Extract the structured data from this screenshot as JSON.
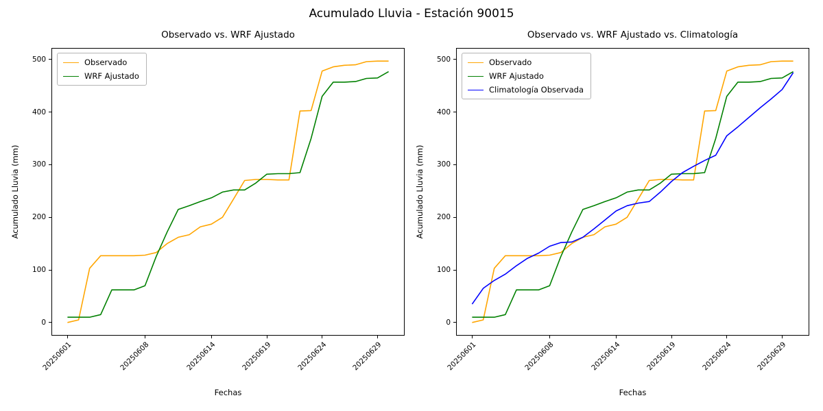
{
  "figure": {
    "suptitle": "Acumulado Lluvia - Estación 90015",
    "background": "#ffffff"
  },
  "chart_data": [
    {
      "type": "line",
      "title": "Observado vs. WRF Ajustado",
      "xlabel": "Fechas",
      "ylabel": "Acumulado Lluvia (mm)",
      "ylim": [
        -25,
        522
      ],
      "y_ticks": [
        0,
        100,
        200,
        300,
        400,
        500
      ],
      "grid": false,
      "legend_position": "upper left",
      "x_tick_rotation": 45,
      "x": [
        "20250601",
        "20250602",
        "20250603",
        "20250604",
        "20250605",
        "20250606",
        "20250607",
        "20250608",
        "20250609",
        "20250610",
        "20250611",
        "20250612",
        "20250613",
        "20250614",
        "20250615",
        "20250616",
        "20250617",
        "20250618",
        "20250619",
        "20250620",
        "20250621",
        "20250622",
        "20250623",
        "20250624",
        "20250625",
        "20250626",
        "20250627",
        "20250628",
        "20250629",
        "20250630"
      ],
      "x_tick_positions": [
        0,
        7,
        13,
        18,
        23,
        28
      ],
      "x_tick_labels": [
        "20250601",
        "20250608",
        "20250614",
        "20250619",
        "20250624",
        "20250629"
      ],
      "series": [
        {
          "name": "Observado",
          "color": "#ffa500",
          "values": [
            0,
            5,
            103,
            127,
            127,
            127,
            127,
            128,
            133,
            150,
            162,
            167,
            182,
            187,
            200,
            235,
            270,
            272,
            272,
            271,
            271,
            402,
            403,
            478,
            486,
            489,
            490,
            496,
            497,
            497
          ]
        },
        {
          "name": "WRF Ajustado",
          "color": "#008000",
          "values": [
            10,
            10,
            10,
            15,
            62,
            62,
            62,
            70,
            125,
            172,
            215,
            222,
            230,
            237,
            248,
            252,
            252,
            265,
            282,
            283,
            283,
            285,
            350,
            430,
            457,
            457,
            458,
            464,
            465,
            477
          ]
        }
      ]
    },
    {
      "type": "line",
      "title": "Observado vs. WRF Ajustado vs. Climatología",
      "xlabel": "Fechas",
      "ylabel": "Acumulado Lluvia (mm)",
      "ylim": [
        -25,
        522
      ],
      "y_ticks": [
        0,
        100,
        200,
        300,
        400,
        500
      ],
      "grid": false,
      "legend_position": "upper left",
      "x_tick_rotation": 45,
      "x": [
        "20250601",
        "20250602",
        "20250603",
        "20250604",
        "20250605",
        "20250606",
        "20250607",
        "20250608",
        "20250609",
        "20250610",
        "20250611",
        "20250612",
        "20250613",
        "20250614",
        "20250615",
        "20250616",
        "20250617",
        "20250618",
        "20250619",
        "20250620",
        "20250621",
        "20250622",
        "20250623",
        "20250624",
        "20250625",
        "20250626",
        "20250627",
        "20250628",
        "20250629",
        "20250630"
      ],
      "x_tick_positions": [
        0,
        7,
        13,
        18,
        23,
        28
      ],
      "x_tick_labels": [
        "20250601",
        "20250608",
        "20250614",
        "20250619",
        "20250624",
        "20250629"
      ],
      "series": [
        {
          "name": "Observado",
          "color": "#ffa500",
          "values": [
            0,
            5,
            103,
            127,
            127,
            127,
            127,
            128,
            133,
            150,
            162,
            167,
            182,
            187,
            200,
            235,
            270,
            272,
            272,
            271,
            271,
            402,
            403,
            478,
            486,
            489,
            490,
            496,
            497,
            497
          ]
        },
        {
          "name": "WRF Ajustado",
          "color": "#008000",
          "values": [
            10,
            10,
            10,
            15,
            62,
            62,
            62,
            70,
            125,
            172,
            215,
            222,
            230,
            237,
            248,
            252,
            252,
            265,
            282,
            283,
            283,
            285,
            350,
            430,
            457,
            457,
            458,
            464,
            465,
            477
          ]
        },
        {
          "name": "Climatología Observada",
          "color": "#0000ff",
          "values": [
            35,
            65,
            80,
            92,
            108,
            122,
            132,
            145,
            152,
            153,
            162,
            178,
            195,
            212,
            222,
            227,
            230,
            248,
            268,
            285,
            297,
            308,
            318,
            355,
            372,
            390,
            408,
            425,
            443,
            475
          ]
        }
      ]
    }
  ]
}
